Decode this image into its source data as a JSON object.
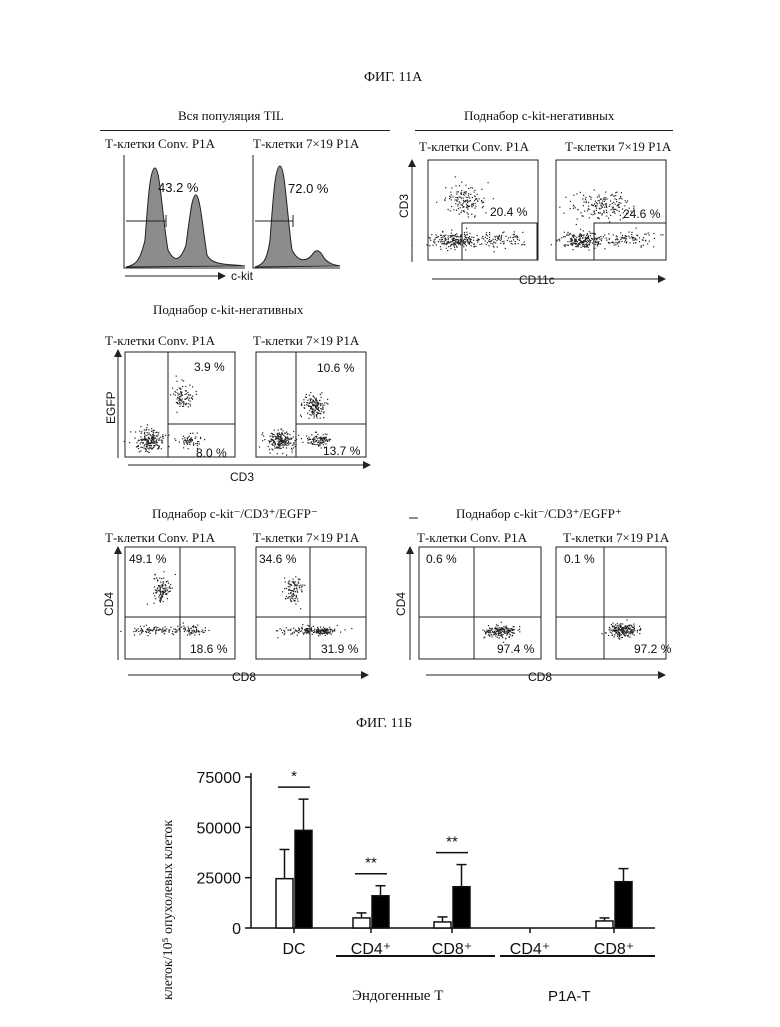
{
  "fig_a": {
    "title": "ФИГ. 11А",
    "sections": [
      {
        "heading": "Вся популяция TIL",
        "plot_type": "histogram",
        "x_axis": "c-kit",
        "plots": [
          {
            "label": "Т-клетки Conv. P1A",
            "gate_value": "43.2 %"
          },
          {
            "label": "Т-клетки 7×19 P1A",
            "gate_value": "72.0 %"
          }
        ]
      },
      {
        "heading": "Поднабор c-kit-негативных",
        "plot_type": "scatter",
        "x_axis": "CD11c",
        "y_axis": "CD3",
        "plots": [
          {
            "label": "Т-клетки Conv. P1A",
            "gate_value": "20.4 %"
          },
          {
            "label": "Т-клетки 7×19 P1A",
            "gate_value": "24.6 %"
          }
        ]
      },
      {
        "heading": "Поднабор c-kit-негативных",
        "plot_type": "quadrant",
        "x_axis": "CD3",
        "y_axis": "EGFP",
        "plots": [
          {
            "label": "Т-клетки Conv. P1A",
            "upper_right": "3.9 %",
            "lower_right": "8.0 %"
          },
          {
            "label": "Т-клетки 7×19 P1A",
            "upper_right": "10.6 %",
            "lower_right": "13.7 %"
          }
        ]
      },
      {
        "heading": "Поднабор c-kit⁻/CD3⁺/EGFP⁻",
        "plot_type": "quadrant",
        "x_axis": "CD8",
        "y_axis": "CD4",
        "plots": [
          {
            "label": "Т-клетки Conv. P1A",
            "upper_left": "49.1 %",
            "lower_right": "18.6 %"
          },
          {
            "label": "Т-клетки 7×19 P1A",
            "upper_left": "34.6 %",
            "lower_right": "31.9 %"
          }
        ]
      },
      {
        "heading": "Поднабор c-kit⁻/CD3⁺/EGFP⁺",
        "plot_type": "quadrant",
        "x_axis": "CD8",
        "y_axis": "CD4",
        "plots": [
          {
            "label": "Т-клетки Conv. P1A",
            "upper_left": "0.6 %",
            "lower_right": "97.4 %"
          },
          {
            "label": "Т-клетки 7×19 P1A",
            "upper_left": "0.1 %",
            "lower_right": "97.2 %"
          }
        ]
      }
    ]
  },
  "fig_b": {
    "title": "ФИГ. 11Б",
    "ylabel": "клеток/10⁵ опухолевых клеток",
    "group_labels": [
      "Эндогенные Т",
      "P1A-T"
    ]
  },
  "chart_data": {
    "type": "bar",
    "ylabel": "клеток/10⁵ опухолевых клеток",
    "yticks": [
      "75000",
      "50000",
      "25000",
      "0"
    ],
    "ylim": [
      0,
      75000
    ],
    "categories": [
      "DC",
      "CD4⁺",
      "CD8⁺",
      "CD4⁺",
      "CD8⁺"
    ],
    "category_groups": [
      "",
      "Эндогенные Т",
      "Эндогенные Т",
      "P1A-T",
      "P1A-T"
    ],
    "series": [
      {
        "color": "#ffffff",
        "values": [
          24500,
          5000,
          3000,
          0,
          3500
        ],
        "errors": [
          14500,
          2500,
          2500,
          0,
          1500
        ]
      },
      {
        "color": "#000000",
        "values": [
          48500,
          16000,
          20500,
          0,
          23000
        ],
        "errors": [
          15500,
          5000,
          11000,
          0,
          6500
        ]
      }
    ],
    "significance": [
      {
        "category": "DC",
        "label": "*"
      },
      {
        "category": "CD4⁺",
        "label": "**"
      },
      {
        "category": "CD8⁺",
        "label": "**"
      }
    ]
  }
}
